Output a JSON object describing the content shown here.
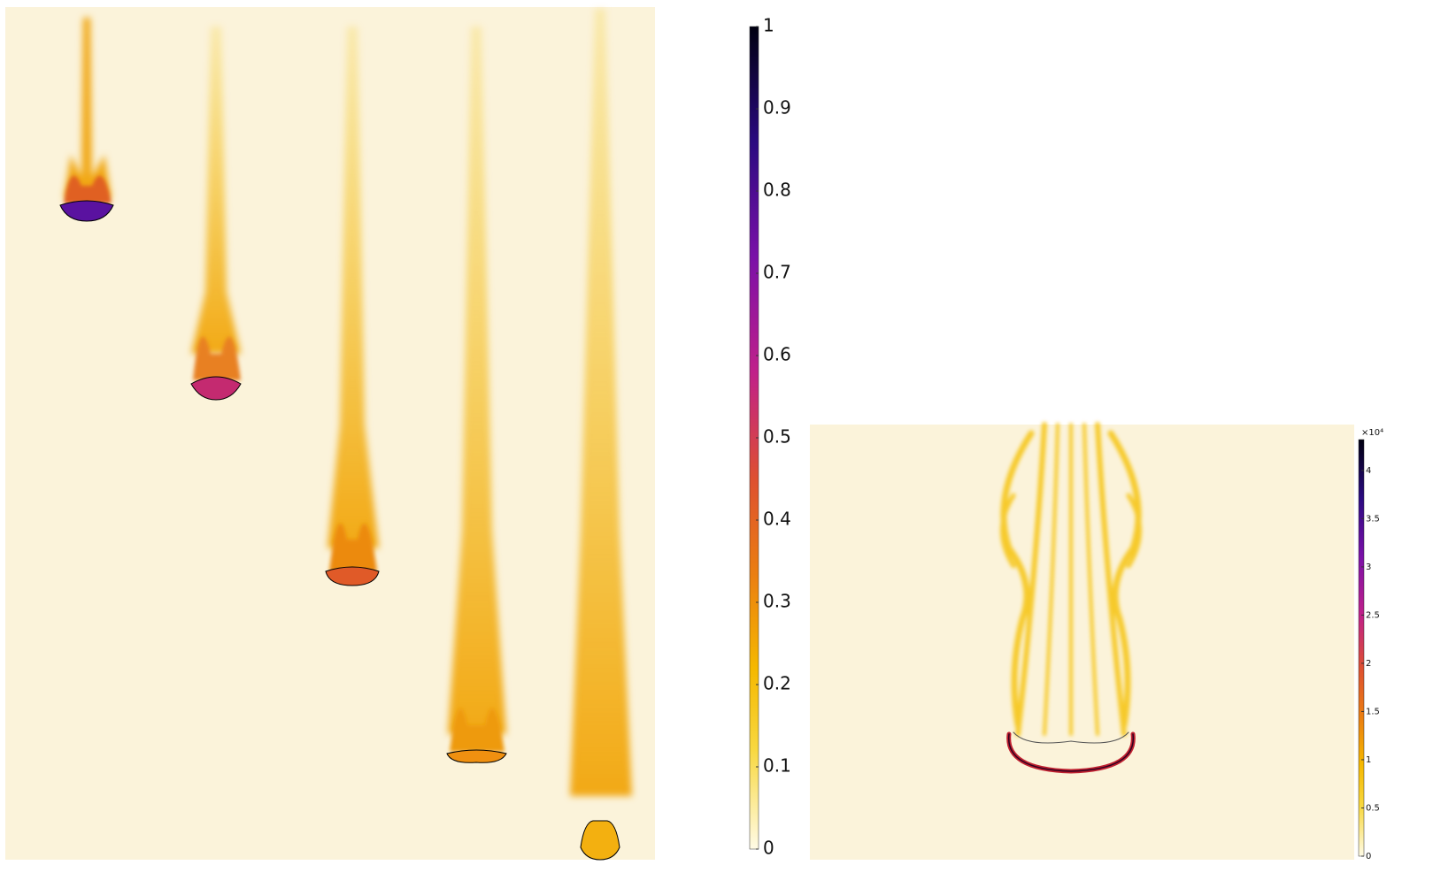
{
  "colorbar_main": {
    "range": [
      0,
      1
    ],
    "ticks": [
      0,
      0.1,
      0.2,
      0.3,
      0.4,
      0.5,
      0.6,
      0.7,
      0.8,
      0.9,
      1
    ]
  },
  "colorbar_detail": {
    "exponent_label": "×10⁴",
    "range": [
      0,
      4.32
    ],
    "ticks": [
      0,
      0.5,
      1,
      1.5,
      2,
      2.5,
      3,
      3.5,
      4
    ]
  }
}
